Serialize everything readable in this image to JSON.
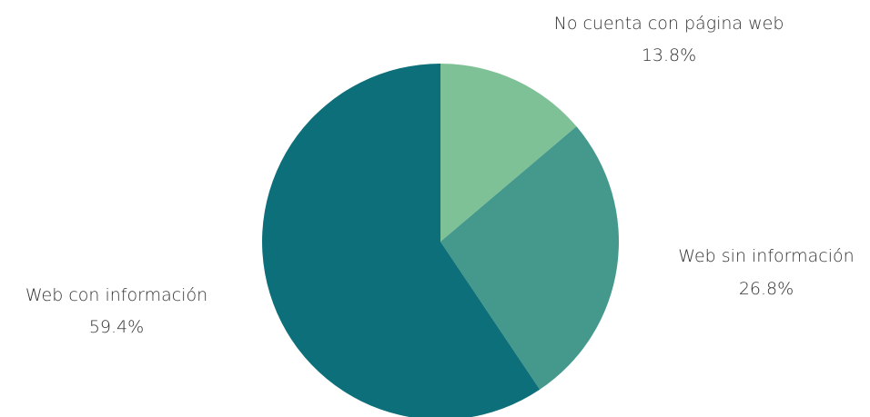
{
  "chart_data": {
    "type": "pie",
    "title": "",
    "start": "top",
    "direction": "clockwise",
    "slices": [
      {
        "label": "No cuenta con página web",
        "value": 13.8,
        "value_label": "13.8%",
        "color": "#7fc197"
      },
      {
        "label": "Web sin información",
        "value": 26.8,
        "value_label": "26.8%",
        "color": "#45998c"
      },
      {
        "label": "Web con información",
        "value": 59.4,
        "value_label": "59.4%",
        "color": "#0d6f7a"
      }
    ]
  }
}
